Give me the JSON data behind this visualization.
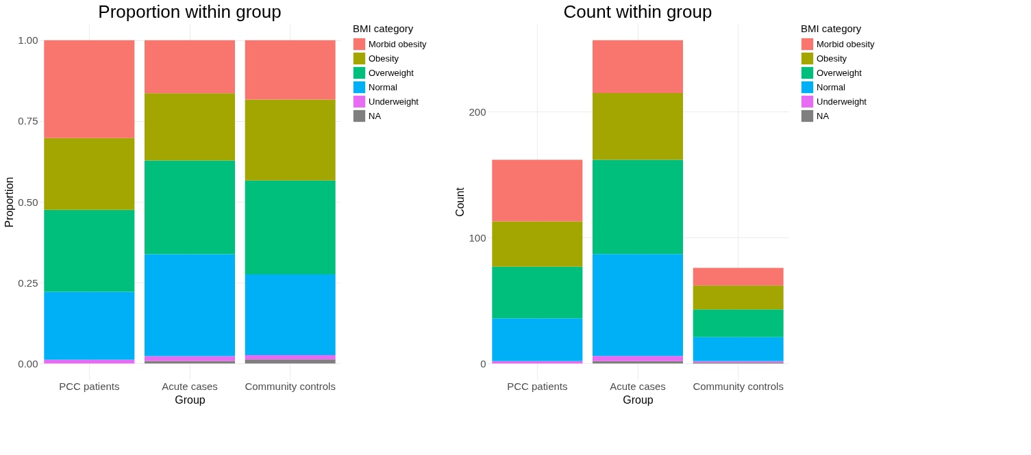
{
  "chart_data": [
    {
      "type": "bar",
      "stacked": true,
      "title": "Proportion within group",
      "xlabel": "Group",
      "ylabel": "Proportion",
      "legend_title": "BMI category",
      "legend": "right",
      "grid": true,
      "categories": [
        "PCC patients",
        "Acute cases",
        "Community controls"
      ],
      "ylim": [
        -0.05,
        1.05
      ],
      "yticks": [
        {
          "value": 0,
          "label": "0.00"
        },
        {
          "value": 0.25,
          "label": "0.25"
        },
        {
          "value": 0.5,
          "label": "0.50"
        },
        {
          "value": 0.75,
          "label": "0.75"
        },
        {
          "value": 1,
          "label": "1.00"
        }
      ],
      "series": [
        {
          "name": "NA",
          "color": "#7f7f7f",
          "values": [
            0,
            0.008,
            0.013
          ]
        },
        {
          "name": "Underweight",
          "color": "#e76bf3",
          "values": [
            0.012,
            0.015,
            0.013
          ]
        },
        {
          "name": "Normal",
          "color": "#00b0f6",
          "values": [
            0.21,
            0.315,
            0.25
          ]
        },
        {
          "name": "Overweight",
          "color": "#00bf7d",
          "values": [
            0.253,
            0.29,
            0.29
          ]
        },
        {
          "name": "Obesity",
          "color": "#a3a500",
          "values": [
            0.222,
            0.208,
            0.25
          ]
        },
        {
          "name": "Morbid obesity",
          "color": "#f8766d",
          "values": [
            0.303,
            0.164,
            0.184
          ]
        }
      ]
    },
    {
      "type": "bar",
      "stacked": true,
      "title": "Count within group",
      "xlabel": "Group",
      "ylabel": "Count",
      "legend_title": "BMI category",
      "legend": "right",
      "grid": true,
      "categories": [
        "PCC patients",
        "Acute cases",
        "Community controls"
      ],
      "ylim": [
        -12.85,
        269.85
      ],
      "yticks": [
        0,
        100,
        200
      ],
      "series": [
        {
          "name": "NA",
          "color": "#7f7f7f",
          "values": [
            0,
            2,
            1
          ]
        },
        {
          "name": "Underweight",
          "color": "#e76bf3",
          "values": [
            2,
            4,
            1
          ]
        },
        {
          "name": "Normal",
          "color": "#00b0f6",
          "values": [
            34,
            81,
            19
          ]
        },
        {
          "name": "Overweight",
          "color": "#00bf7d",
          "values": [
            41,
            75,
            22
          ]
        },
        {
          "name": "Obesity",
          "color": "#a3a500",
          "values": [
            36,
            53,
            19
          ]
        },
        {
          "name": "Morbid obesity",
          "color": "#f8766d",
          "values": [
            49,
            42,
            14
          ]
        }
      ]
    }
  ]
}
